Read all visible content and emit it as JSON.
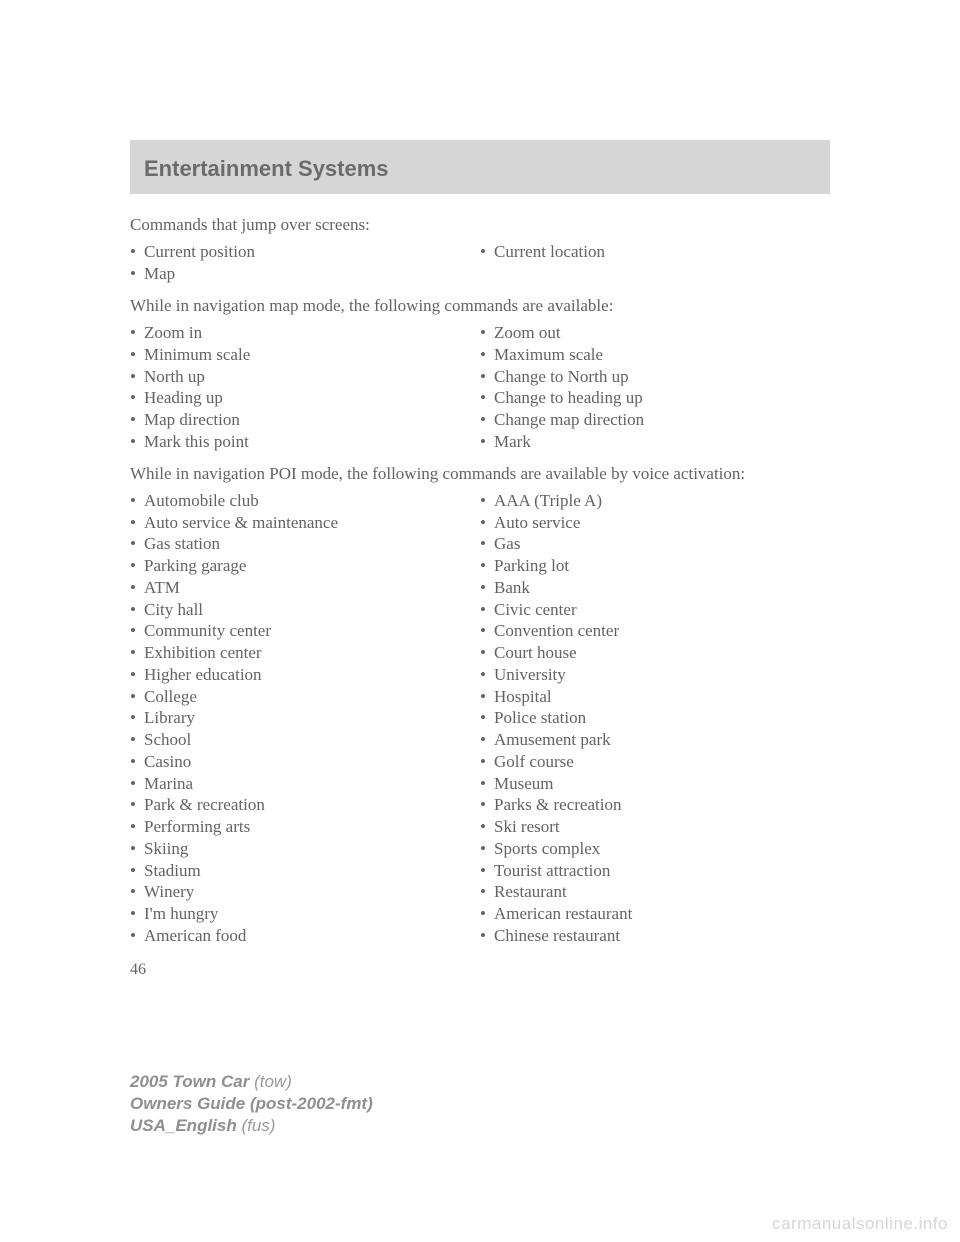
{
  "header": {
    "title": "Entertainment Systems"
  },
  "section1": {
    "intro": "Commands that jump over screens:",
    "left": [
      "Current position",
      "Map"
    ],
    "right": [
      "Current location"
    ]
  },
  "section2": {
    "intro": "While in navigation map mode, the following commands are available:",
    "left": [
      "Zoom in",
      "Minimum scale",
      "North up",
      "Heading up",
      "Map direction",
      "Mark this point"
    ],
    "right": [
      "Zoom out",
      "Maximum scale",
      "Change to North up",
      "Change to heading up",
      "Change map direction",
      "Mark"
    ]
  },
  "section3": {
    "intro": "While in navigation POI mode, the following commands are available by voice activation:",
    "left": [
      "Automobile club",
      "Auto service & maintenance",
      "Gas station",
      "Parking garage",
      "ATM",
      "City hall",
      "Community center",
      "Exhibition center",
      "Higher education",
      "College",
      "Library",
      "School",
      "Casino",
      "Marina",
      "Park & recreation",
      "Performing arts",
      "Skiing",
      "Stadium",
      "Winery",
      "I'm hungry",
      "American food"
    ],
    "right": [
      "AAA (Triple A)",
      "Auto service",
      "Gas",
      "Parking lot",
      "Bank",
      "Civic center",
      "Convention center",
      "Court house",
      "University",
      "Hospital",
      "Police station",
      "Amusement park",
      "Golf course",
      "Museum",
      "Parks & recreation",
      "Ski resort",
      "Sports complex",
      "Tourist attraction",
      "Restaurant",
      "American restaurant",
      "Chinese restaurant"
    ]
  },
  "pageNumber": "46",
  "footer": {
    "line1_bold": "2005 Town Car",
    "line1_rest": " (tow)",
    "line2": "Owners Guide (post-2002-fmt)",
    "line3_bold": "USA_English",
    "line3_rest": " (fus)"
  },
  "watermark": "carmanualsonline.info"
}
